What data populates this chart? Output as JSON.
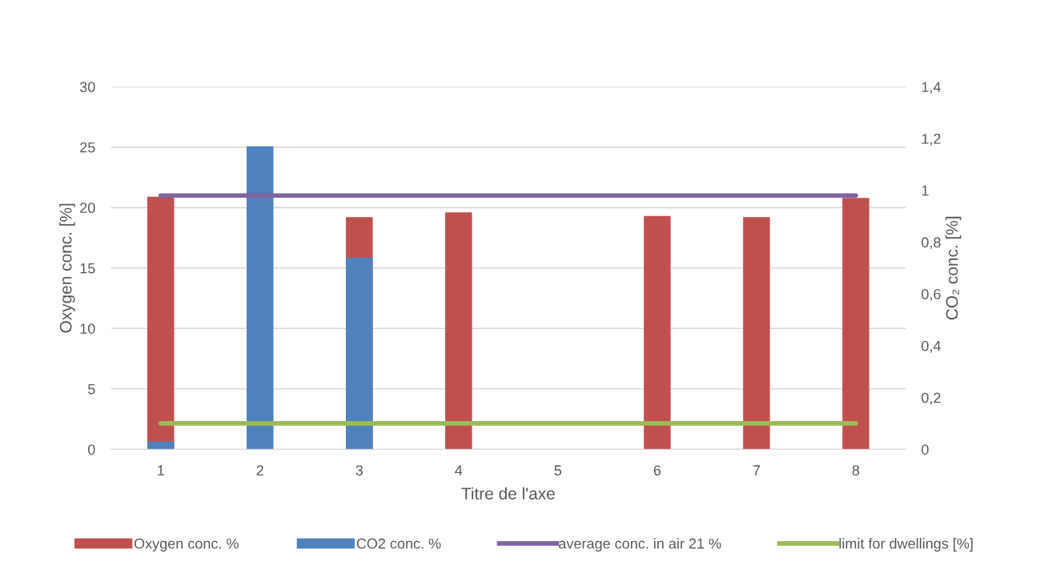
{
  "chart_data": {
    "type": "bar",
    "xlabel": "Titre de l'axe",
    "ylabel": "Oxygen conc. [%]",
    "y2label": "CO₂ conc. [%]",
    "categories": [
      "1",
      "2",
      "3",
      "4",
      "5",
      "6",
      "7",
      "8"
    ],
    "series": [
      {
        "name": "Oxygen conc. %",
        "color": "#c0504d",
        "values": [
          20.9,
          null,
          19.2,
          19.6,
          null,
          19.3,
          19.2,
          20.8
        ]
      },
      {
        "name": "CO2 conc. %",
        "axis": "y2",
        "color": "#4f81bd",
        "values": [
          0.03,
          1.17,
          0.74,
          null,
          null,
          null,
          null,
          null
        ]
      },
      {
        "name": "average conc. in air 21 %",
        "type": "line",
        "color": "#8064a2",
        "values": [
          21,
          21,
          21,
          21,
          21,
          21,
          21,
          21
        ]
      },
      {
        "name": "limit for dwellings [%]",
        "type": "line",
        "axis": "y2",
        "color": "#9bbb59",
        "values": [
          0.1,
          0.1,
          0.1,
          0.1,
          0.1,
          0.1,
          0.1,
          0.1
        ]
      }
    ],
    "ylim": [
      0,
      30
    ],
    "yticks": [
      0,
      5,
      10,
      15,
      20,
      25,
      30
    ],
    "y2lim": [
      0,
      1.4
    ],
    "y2ticks": [
      0,
      {
        "value": 0.2,
        "label": "0,2"
      },
      {
        "value": 0.4,
        "label": "0,4"
      },
      {
        "value": 0.6,
        "label": "0,6"
      },
      {
        "value": 0.8,
        "label": "0,8"
      },
      1,
      {
        "value": 1.2,
        "label": "1,2"
      },
      {
        "value": 1.4,
        "label": "1,4"
      }
    ],
    "grid": "y",
    "legend": "bottom"
  }
}
